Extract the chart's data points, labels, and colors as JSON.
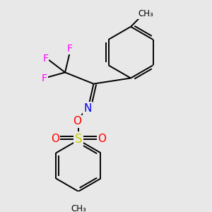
{
  "background_color": "#e8e8e8",
  "bond_color": "#000000",
  "F_color": "#ff00ff",
  "N_color": "#0000ee",
  "O_color": "#ff0000",
  "S_color": "#cccc00",
  "lw": 1.4,
  "figsize": [
    3.0,
    3.0
  ],
  "dpi": 100,
  "xlim": [
    0.0,
    1.0
  ],
  "ylim": [
    0.0,
    1.0
  ]
}
